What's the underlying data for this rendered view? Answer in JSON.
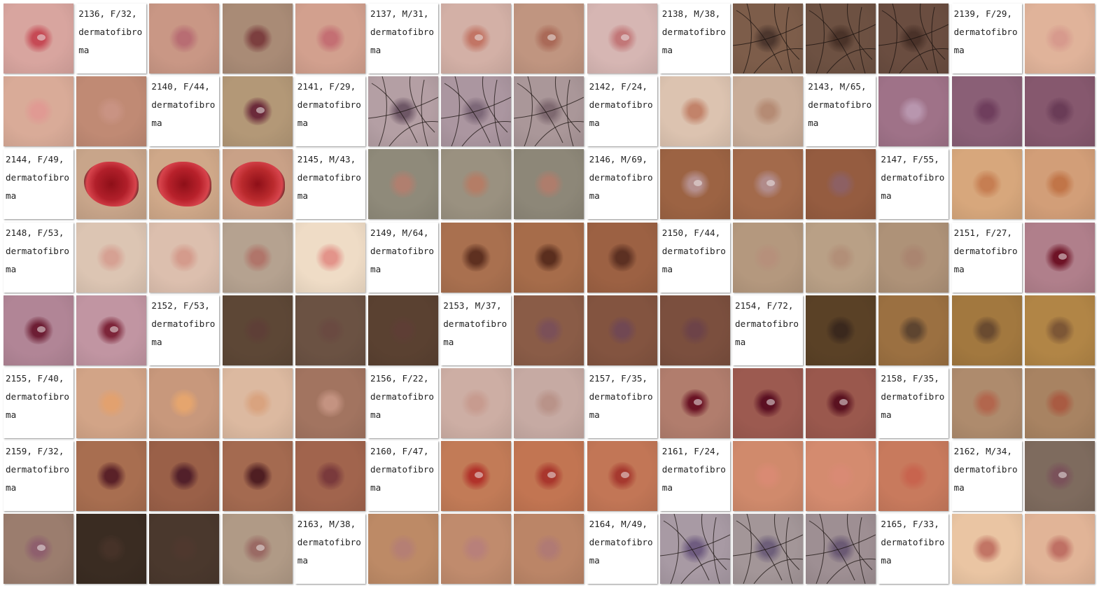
{
  "grid": {
    "columns": 15,
    "rows": 8,
    "cells": [
      {
        "kind": "photo",
        "skin": "#d8a59f",
        "lesion": "#c64a55",
        "hair": false,
        "ulcer": false,
        "scale": true
      },
      {
        "kind": "label",
        "text": "2136, F/32, dermatofibroma"
      },
      {
        "kind": "photo",
        "skin": "#c99785",
        "lesion": "#b86d73",
        "hair": false,
        "ulcer": false,
        "scale": false
      },
      {
        "kind": "photo",
        "skin": "#a98b76",
        "lesion": "#7c3f3f",
        "hair": false,
        "ulcer": false,
        "scale": false
      },
      {
        "kind": "photo",
        "skin": "#d2a08e",
        "lesion": "#c46f73",
        "hair": false,
        "ulcer": false,
        "scale": false
      },
      {
        "kind": "label",
        "text": "2137, M/31, dermatofibroma"
      },
      {
        "kind": "photo",
        "skin": "#d3b0a6",
        "lesion": "#c27565",
        "hair": false,
        "ulcer": false,
        "scale": true
      },
      {
        "kind": "photo",
        "skin": "#c09580",
        "lesion": "#aa6a58",
        "hair": false,
        "ulcer": false,
        "scale": true
      },
      {
        "kind": "photo",
        "skin": "#d6b6b3",
        "lesion": "#c27778",
        "hair": false,
        "ulcer": false,
        "scale": true
      },
      {
        "kind": "label",
        "text": "2138, M/38, dermatofibroma"
      },
      {
        "kind": "photo",
        "skin": "#7d5d4a",
        "lesion": "#4d372e",
        "hair": true,
        "ulcer": false,
        "scale": false
      },
      {
        "kind": "photo",
        "skin": "#6d5142",
        "lesion": "#4a3329",
        "hair": true,
        "ulcer": false,
        "scale": false
      },
      {
        "kind": "photo",
        "skin": "#6a4d40",
        "lesion": "#4a3229",
        "hair": true,
        "ulcer": false,
        "scale": false
      },
      {
        "kind": "label",
        "text": "2139, F/29, dermatofibroma"
      },
      {
        "kind": "photo",
        "skin": "#e0b39a",
        "lesion": "#d79a8d",
        "hair": false,
        "ulcer": false,
        "scale": false
      },
      {
        "kind": "photo",
        "skin": "#d9ab98",
        "lesion": "#e09a93",
        "hair": false,
        "ulcer": false,
        "scale": false
      },
      {
        "kind": "photo",
        "skin": "#c08a74",
        "lesion": "#c99383",
        "hair": false,
        "ulcer": false,
        "scale": false
      },
      {
        "kind": "label",
        "text": "2140, F/44, dermatofibroma"
      },
      {
        "kind": "photo",
        "skin": "#b39877",
        "lesion": "#6b2a3a",
        "hair": false,
        "ulcer": false,
        "scale": true
      },
      {
        "kind": "label",
        "text": "2141, F/29, dermatofibroma"
      },
      {
        "kind": "photo",
        "skin": "#b49fa4",
        "lesion": "#6e5766",
        "hair": true,
        "ulcer": false,
        "scale": false
      },
      {
        "kind": "photo",
        "skin": "#ab96a0",
        "lesion": "#7d6878",
        "hair": true,
        "ulcer": false,
        "scale": false
      },
      {
        "kind": "photo",
        "skin": "#aa9799",
        "lesion": "#7e6970",
        "hair": true,
        "ulcer": false,
        "scale": false
      },
      {
        "kind": "label",
        "text": "2142, F/24, dermatofibroma"
      },
      {
        "kind": "photo",
        "skin": "#dcc3b0",
        "lesion": "#c2836a",
        "hair": false,
        "ulcer": false,
        "scale": false
      },
      {
        "kind": "photo",
        "skin": "#c9ad99",
        "lesion": "#b58b74",
        "hair": false,
        "ulcer": false,
        "scale": false
      },
      {
        "kind": "label",
        "text": "2143, M/65, dermatofibroma"
      },
      {
        "kind": "photo",
        "skin": "#9f7288",
        "lesion": "#b896ae",
        "hair": false,
        "ulcer": false,
        "scale": false
      },
      {
        "kind": "photo",
        "skin": "#8a5f76",
        "lesion": "#6f3e5d",
        "hair": false,
        "ulcer": false,
        "scale": false
      },
      {
        "kind": "photo",
        "skin": "#86586e",
        "lesion": "#6a3c57",
        "hair": false,
        "ulcer": false,
        "scale": false
      },
      {
        "kind": "label",
        "text": "2144, F/49, dermatofibroma"
      },
      {
        "kind": "photo",
        "skin": "#c8a58a",
        "lesion": "#b11f2a",
        "hair": false,
        "ulcer": true,
        "scale": false
      },
      {
        "kind": "photo",
        "skin": "#cfa889",
        "lesion": "#b8212b",
        "hair": false,
        "ulcer": true,
        "scale": false
      },
      {
        "kind": "photo",
        "skin": "#c9a187",
        "lesion": "#ba2a2d",
        "hair": false,
        "ulcer": true,
        "scale": false
      },
      {
        "kind": "label",
        "text": "2145, M/43, dermatofibroma"
      },
      {
        "kind": "photo",
        "skin": "#8f8a7a",
        "lesion": "#b07f6f",
        "hair": false,
        "ulcer": false,
        "scale": false
      },
      {
        "kind": "photo",
        "skin": "#9a9180",
        "lesion": "#b47d66",
        "hair": false,
        "ulcer": false,
        "scale": false
      },
      {
        "kind": "photo",
        "skin": "#8d8778",
        "lesion": "#ae7d6c",
        "hair": false,
        "ulcer": false,
        "scale": false
      },
      {
        "kind": "label",
        "text": "2146, M/69, dermatofibroma"
      },
      {
        "kind": "photo",
        "skin": "#9c6343",
        "lesion": "#b58f8d",
        "hair": false,
        "ulcer": false,
        "scale": true
      },
      {
        "kind": "photo",
        "skin": "#a36a4b",
        "lesion": "#b18b8a",
        "hair": false,
        "ulcer": false,
        "scale": true
      },
      {
        "kind": "photo",
        "skin": "#955c40",
        "lesion": "#8d6063",
        "hair": false,
        "ulcer": false,
        "scale": false
      },
      {
        "kind": "label",
        "text": "2147, F/55, dermatofibroma"
      },
      {
        "kind": "photo",
        "skin": "#d7a77c",
        "lesion": "#c67e52",
        "hair": false,
        "ulcer": false,
        "scale": false
      },
      {
        "kind": "photo",
        "skin": "#d29e78",
        "lesion": "#c17548",
        "hair": false,
        "ulcer": false,
        "scale": false
      },
      {
        "kind": "label",
        "text": "2148, F/53, dermatofibroma"
      },
      {
        "kind": "photo",
        "skin": "#dcc5b3",
        "lesion": "#d6a193",
        "hair": false,
        "ulcer": false,
        "scale": false
      },
      {
        "kind": "photo",
        "skin": "#dcbfae",
        "lesion": "#d49b8c",
        "hair": false,
        "ulcer": false,
        "scale": false
      },
      {
        "kind": "photo",
        "skin": "#b5a290",
        "lesion": "#b0756a",
        "hair": false,
        "ulcer": false,
        "scale": false
      },
      {
        "kind": "photo",
        "skin": "#efdcc6",
        "lesion": "#e3948a",
        "hair": false,
        "ulcer": false,
        "scale": false
      },
      {
        "kind": "label",
        "text": "2149, M/64, dermatofibroma"
      },
      {
        "kind": "photo",
        "skin": "#a9704f",
        "lesion": "#5e3020",
        "hair": false,
        "ulcer": false,
        "scale": false
      },
      {
        "kind": "photo",
        "skin": "#a66c4a",
        "lesion": "#5a2e1e",
        "hair": false,
        "ulcer": false,
        "scale": false
      },
      {
        "kind": "photo",
        "skin": "#9c6143",
        "lesion": "#5c3022",
        "hair": false,
        "ulcer": false,
        "scale": false
      },
      {
        "kind": "label",
        "text": "2150, F/44, dermatofibroma"
      },
      {
        "kind": "photo",
        "skin": "#b4987e",
        "lesion": "#b6907b",
        "hair": false,
        "ulcer": false,
        "scale": false
      },
      {
        "kind": "photo",
        "skin": "#b9a086",
        "lesion": "#b28f78",
        "hair": false,
        "ulcer": false,
        "scale": false
      },
      {
        "kind": "photo",
        "skin": "#ae9278",
        "lesion": "#aa8570",
        "hair": false,
        "ulcer": false,
        "scale": false
      },
      {
        "kind": "label",
        "text": "2151, F/27, dermatofibroma"
      },
      {
        "kind": "photo",
        "skin": "#b07f8b",
        "lesion": "#6e1326",
        "hair": false,
        "ulcer": false,
        "scale": true
      },
      {
        "kind": "photo",
        "skin": "#b18596",
        "lesion": "#6d1e34",
        "hair": false,
        "ulcer": false,
        "scale": true
      },
      {
        "kind": "photo",
        "skin": "#c195a2",
        "lesion": "#7d2539",
        "hair": false,
        "ulcer": false,
        "scale": true
      },
      {
        "kind": "label",
        "text": "2152, F/53, dermatofibroma"
      },
      {
        "kind": "photo",
        "skin": "#5d4736",
        "lesion": "#5e3f37",
        "hair": false,
        "ulcer": false,
        "scale": false
      },
      {
        "kind": "photo",
        "skin": "#6b5243",
        "lesion": "#6a4a41",
        "hair": false,
        "ulcer": false,
        "scale": false
      },
      {
        "kind": "photo",
        "skin": "#5a4131",
        "lesion": "#5e3e35",
        "hair": false,
        "ulcer": false,
        "scale": false
      },
      {
        "kind": "label",
        "text": "2153, M/37, dermatofibroma"
      },
      {
        "kind": "photo",
        "skin": "#8a5c47",
        "lesion": "#7b5058",
        "hair": false,
        "ulcer": false,
        "scale": false
      },
      {
        "kind": "photo",
        "skin": "#835440",
        "lesion": "#714853",
        "hair": false,
        "ulcer": false,
        "scale": false
      },
      {
        "kind": "photo",
        "skin": "#7b4f3e",
        "lesion": "#6d4348",
        "hair": false,
        "ulcer": false,
        "scale": false
      },
      {
        "kind": "label",
        "text": "2154, F/72, dermatofibroma"
      },
      {
        "kind": "photo",
        "skin": "#5a4126",
        "lesion": "#3a281d",
        "hair": false,
        "ulcer": false,
        "scale": false
      },
      {
        "kind": "photo",
        "skin": "#9b7041",
        "lesion": "#5e4530",
        "hair": false,
        "ulcer": false,
        "scale": false
      },
      {
        "kind": "photo",
        "skin": "#a2783f",
        "lesion": "#6a4b30",
        "hair": false,
        "ulcer": false,
        "scale": false
      },
      {
        "kind": "photo",
        "skin": "#b18546",
        "lesion": "#7d5736",
        "hair": false,
        "ulcer": false,
        "scale": false
      },
      {
        "kind": "label",
        "text": "2155, F/40, dermatofibroma"
      },
      {
        "kind": "photo",
        "skin": "#d2a487",
        "lesion": "#e2a16f",
        "hair": false,
        "ulcer": false,
        "scale": false
      },
      {
        "kind": "photo",
        "skin": "#c8987c",
        "lesion": "#e5a56e",
        "hair": false,
        "ulcer": false,
        "scale": false
      },
      {
        "kind": "photo",
        "skin": "#dcb9a0",
        "lesion": "#d9a37f",
        "hair": false,
        "ulcer": false,
        "scale": false
      },
      {
        "kind": "photo",
        "skin": "#a27460",
        "lesion": "#c49381",
        "hair": false,
        "ulcer": false,
        "scale": false
      },
      {
        "kind": "label",
        "text": "2156, F/22, dermatofibroma"
      },
      {
        "kind": "photo",
        "skin": "#cdaea4",
        "lesion": "#c79b8f",
        "hair": false,
        "ulcer": false,
        "scale": false
      },
      {
        "kind": "photo",
        "skin": "#c6aaa3",
        "lesion": "#b99389",
        "hair": false,
        "ulcer": false,
        "scale": false
      },
      {
        "kind": "label",
        "text": "2157, F/35, dermatofibroma"
      },
      {
        "kind": "photo",
        "skin": "#b17d6d",
        "lesion": "#6a1324",
        "hair": false,
        "ulcer": false,
        "scale": true
      },
      {
        "kind": "photo",
        "skin": "#9c5a50",
        "lesion": "#5b1022",
        "hair": false,
        "ulcer": false,
        "scale": true
      },
      {
        "kind": "photo",
        "skin": "#9a584d",
        "lesion": "#5a1220",
        "hair": false,
        "ulcer": false,
        "scale": true
      },
      {
        "kind": "label",
        "text": "2158, F/35, dermatofibroma"
      },
      {
        "kind": "photo",
        "skin": "#ae8b6d",
        "lesion": "#b2664d",
        "hair": false,
        "ulcer": false,
        "scale": false
      },
      {
        "kind": "photo",
        "skin": "#a88362",
        "lesion": "#a95b42",
        "hair": false,
        "ulcer": false,
        "scale": false
      },
      {
        "kind": "label",
        "text": "2159, F/32, dermatofibroma"
      },
      {
        "kind": "photo",
        "skin": "#a86e50",
        "lesion": "#5a2128",
        "hair": false,
        "ulcer": false,
        "scale": false
      },
      {
        "kind": "photo",
        "skin": "#9a6048",
        "lesion": "#52202a",
        "hair": false,
        "ulcer": false,
        "scale": false
      },
      {
        "kind": "photo",
        "skin": "#a46a50",
        "lesion": "#4f1e22",
        "hair": false,
        "ulcer": false,
        "scale": false
      },
      {
        "kind": "photo",
        "skin": "#a1644d",
        "lesion": "#7a3a3c",
        "hair": false,
        "ulcer": false,
        "scale": false
      },
      {
        "kind": "label",
        "text": "2160, F/47, dermatofibroma"
      },
      {
        "kind": "photo",
        "skin": "#c27b57",
        "lesion": "#b1322a",
        "hair": false,
        "ulcer": false,
        "scale": true
      },
      {
        "kind": "photo",
        "skin": "#c27552",
        "lesion": "#a9372d",
        "hair": false,
        "ulcer": false,
        "scale": true
      },
      {
        "kind": "photo",
        "skin": "#c27656",
        "lesion": "#a6392f",
        "hair": false,
        "ulcer": false,
        "scale": true
      },
      {
        "kind": "label",
        "text": "2161, F/24, dermatofibroma"
      },
      {
        "kind": "photo",
        "skin": "#d08a6c",
        "lesion": "#d98a73",
        "hair": false,
        "ulcer": false,
        "scale": false
      },
      {
        "kind": "photo",
        "skin": "#d48b6f",
        "lesion": "#d98a74",
        "hair": false,
        "ulcer": false,
        "scale": false
      },
      {
        "kind": "photo",
        "skin": "#c87a5d",
        "lesion": "#c8644e",
        "hair": false,
        "ulcer": false,
        "scale": false
      },
      {
        "kind": "label",
        "text": "2162, M/34, dermatofibroma"
      },
      {
        "kind": "photo",
        "skin": "#7e6b5e",
        "lesion": "#7a525a",
        "hair": false,
        "ulcer": false,
        "scale": true
      },
      {
        "kind": "photo",
        "skin": "#9b7d6e",
        "lesion": "#8e5f6d",
        "hair": false,
        "ulcer": false,
        "scale": true
      },
      {
        "kind": "photo",
        "skin": "#3a2c22",
        "lesion": "#463228",
        "hair": false,
        "ulcer": false,
        "scale": false
      },
      {
        "kind": "photo",
        "skin": "#4a382d",
        "lesion": "#4f382e",
        "hair": false,
        "ulcer": false,
        "scale": false
      },
      {
        "kind": "photo",
        "skin": "#b09a86",
        "lesion": "#9a6a64",
        "hair": false,
        "ulcer": false,
        "scale": true
      },
      {
        "kind": "label",
        "text": "2163, M/38, dermatofibroma"
      },
      {
        "kind": "photo",
        "skin": "#bd8a66",
        "lesion": "#b57f74",
        "hair": false,
        "ulcer": false,
        "scale": false
      },
      {
        "kind": "photo",
        "skin": "#c08b6d",
        "lesion": "#b8807a",
        "hair": false,
        "ulcer": false,
        "scale": false
      },
      {
        "kind": "photo",
        "skin": "#bb8567",
        "lesion": "#b07a74",
        "hair": false,
        "ulcer": false,
        "scale": false
      },
      {
        "kind": "label",
        "text": "2164, M/49, dermatofibroma"
      },
      {
        "kind": "photo",
        "skin": "#a89aa4",
        "lesion": "#6f5c80",
        "hair": true,
        "ulcer": false,
        "scale": false
      },
      {
        "kind": "photo",
        "skin": "#a39698",
        "lesion": "#6e5f7a",
        "hair": true,
        "ulcer": false,
        "scale": false
      },
      {
        "kind": "photo",
        "skin": "#9e8f93",
        "lesion": "#6b5a74",
        "hair": true,
        "ulcer": false,
        "scale": false
      },
      {
        "kind": "label",
        "text": "2165, F/33, dermatofibroma"
      },
      {
        "kind": "photo",
        "skin": "#eac5a3",
        "lesion": "#c27565",
        "hair": false,
        "ulcer": false,
        "scale": false
      },
      {
        "kind": "photo",
        "skin": "#e1b497",
        "lesion": "#bf7064",
        "hair": false,
        "ulcer": false,
        "scale": false
      }
    ]
  }
}
